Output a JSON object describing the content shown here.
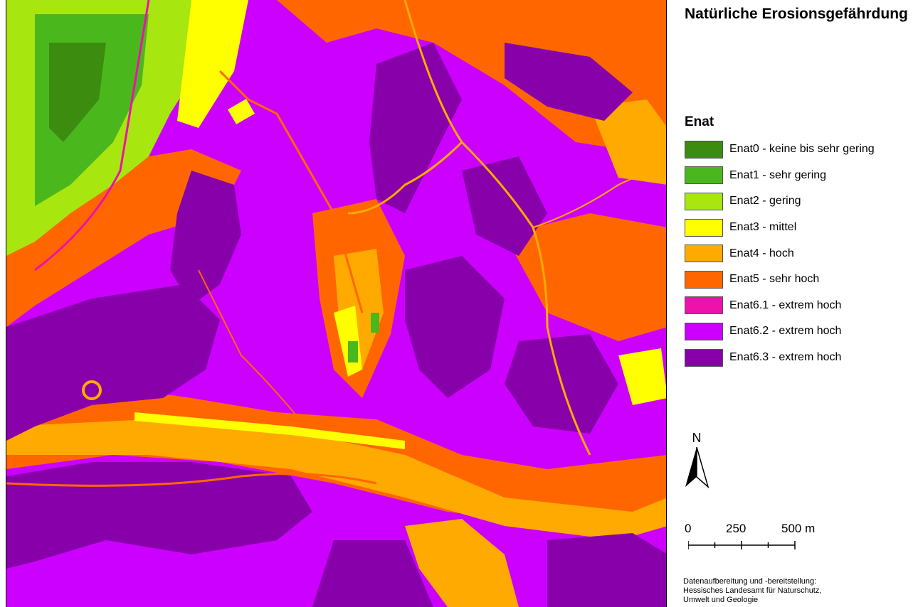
{
  "legend": {
    "title": "Natürliche Erosionsgefährdung",
    "heading": "Enat",
    "items": [
      {
        "label": "Enat0 - keine bis sehr gering",
        "color": "#3c8c0f"
      },
      {
        "label": "Enat1 - sehr gering",
        "color": "#4ab81c"
      },
      {
        "label": "Enat2 - gering",
        "color": "#a8e60f"
      },
      {
        "label": "Enat3 - mittel",
        "color": "#ffff00"
      },
      {
        "label": "Enat4 - hoch",
        "color": "#ffaa00"
      },
      {
        "label": "Enat5 - sehr hoch",
        "color": "#ff6600"
      },
      {
        "label": "Enat6.1 - extrem hoch",
        "color": "#ee11aa"
      },
      {
        "label": "Enat6.2 - extrem hoch",
        "color": "#cc00ff"
      },
      {
        "label": "Enat6.3 - extrem hoch",
        "color": "#8800aa"
      }
    ]
  },
  "north_arrow": {
    "letter": "N",
    "icon": "north-arrow-icon"
  },
  "scale_bar": {
    "labels": [
      "0",
      "250",
      "500 m"
    ]
  },
  "credits": {
    "line1": "Datenaufbereitung und -bereitstellung:",
    "line2": "Hessisches Landesamt für Naturschutz,",
    "line3": "Umwelt und Geologie"
  }
}
